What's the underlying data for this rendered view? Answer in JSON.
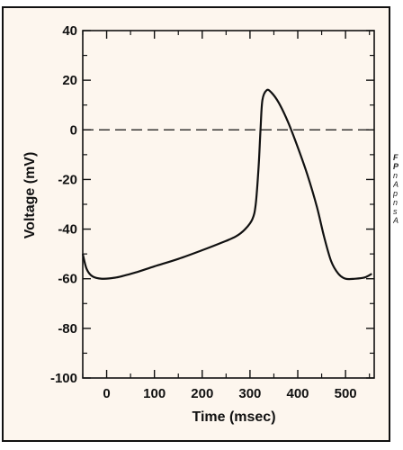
{
  "caption_fragment": [
    "F",
    "P",
    "n",
    "A",
    "p",
    "n",
    "s",
    "A"
  ],
  "chart_data": {
    "type": "line",
    "xlabel": "Time (msec)",
    "ylabel": "Voltage (mV)",
    "xlim": [
      -50,
      560
    ],
    "ylim": [
      -100,
      40
    ],
    "x_ticks": [
      0,
      100,
      200,
      300,
      400,
      500
    ],
    "y_ticks": [
      40,
      20,
      0,
      -20,
      -40,
      -60,
      -80,
      -100
    ],
    "grid": false,
    "reference_lines": [
      {
        "axis": "y",
        "value": 0,
        "style": "dashed"
      }
    ],
    "series": [
      {
        "points": [
          [
            -50,
            -50
          ],
          [
            -42,
            -56
          ],
          [
            -30,
            -59
          ],
          [
            -10,
            -60
          ],
          [
            20,
            -59.5
          ],
          [
            60,
            -57.5
          ],
          [
            100,
            -55
          ],
          [
            150,
            -52
          ],
          [
            200,
            -48.5
          ],
          [
            240,
            -45.5
          ],
          [
            270,
            -43
          ],
          [
            290,
            -40
          ],
          [
            305,
            -36
          ],
          [
            312,
            -30
          ],
          [
            318,
            -15
          ],
          [
            322,
            0
          ],
          [
            326,
            12
          ],
          [
            335,
            16
          ],
          [
            345,
            15
          ],
          [
            360,
            11
          ],
          [
            380,
            3
          ],
          [
            400,
            -7
          ],
          [
            420,
            -18
          ],
          [
            440,
            -31
          ],
          [
            455,
            -43
          ],
          [
            470,
            -53
          ],
          [
            485,
            -58
          ],
          [
            500,
            -60
          ],
          [
            520,
            -60
          ],
          [
            540,
            -59.5
          ],
          [
            555,
            -58
          ]
        ],
        "color": "#111111"
      }
    ]
  }
}
